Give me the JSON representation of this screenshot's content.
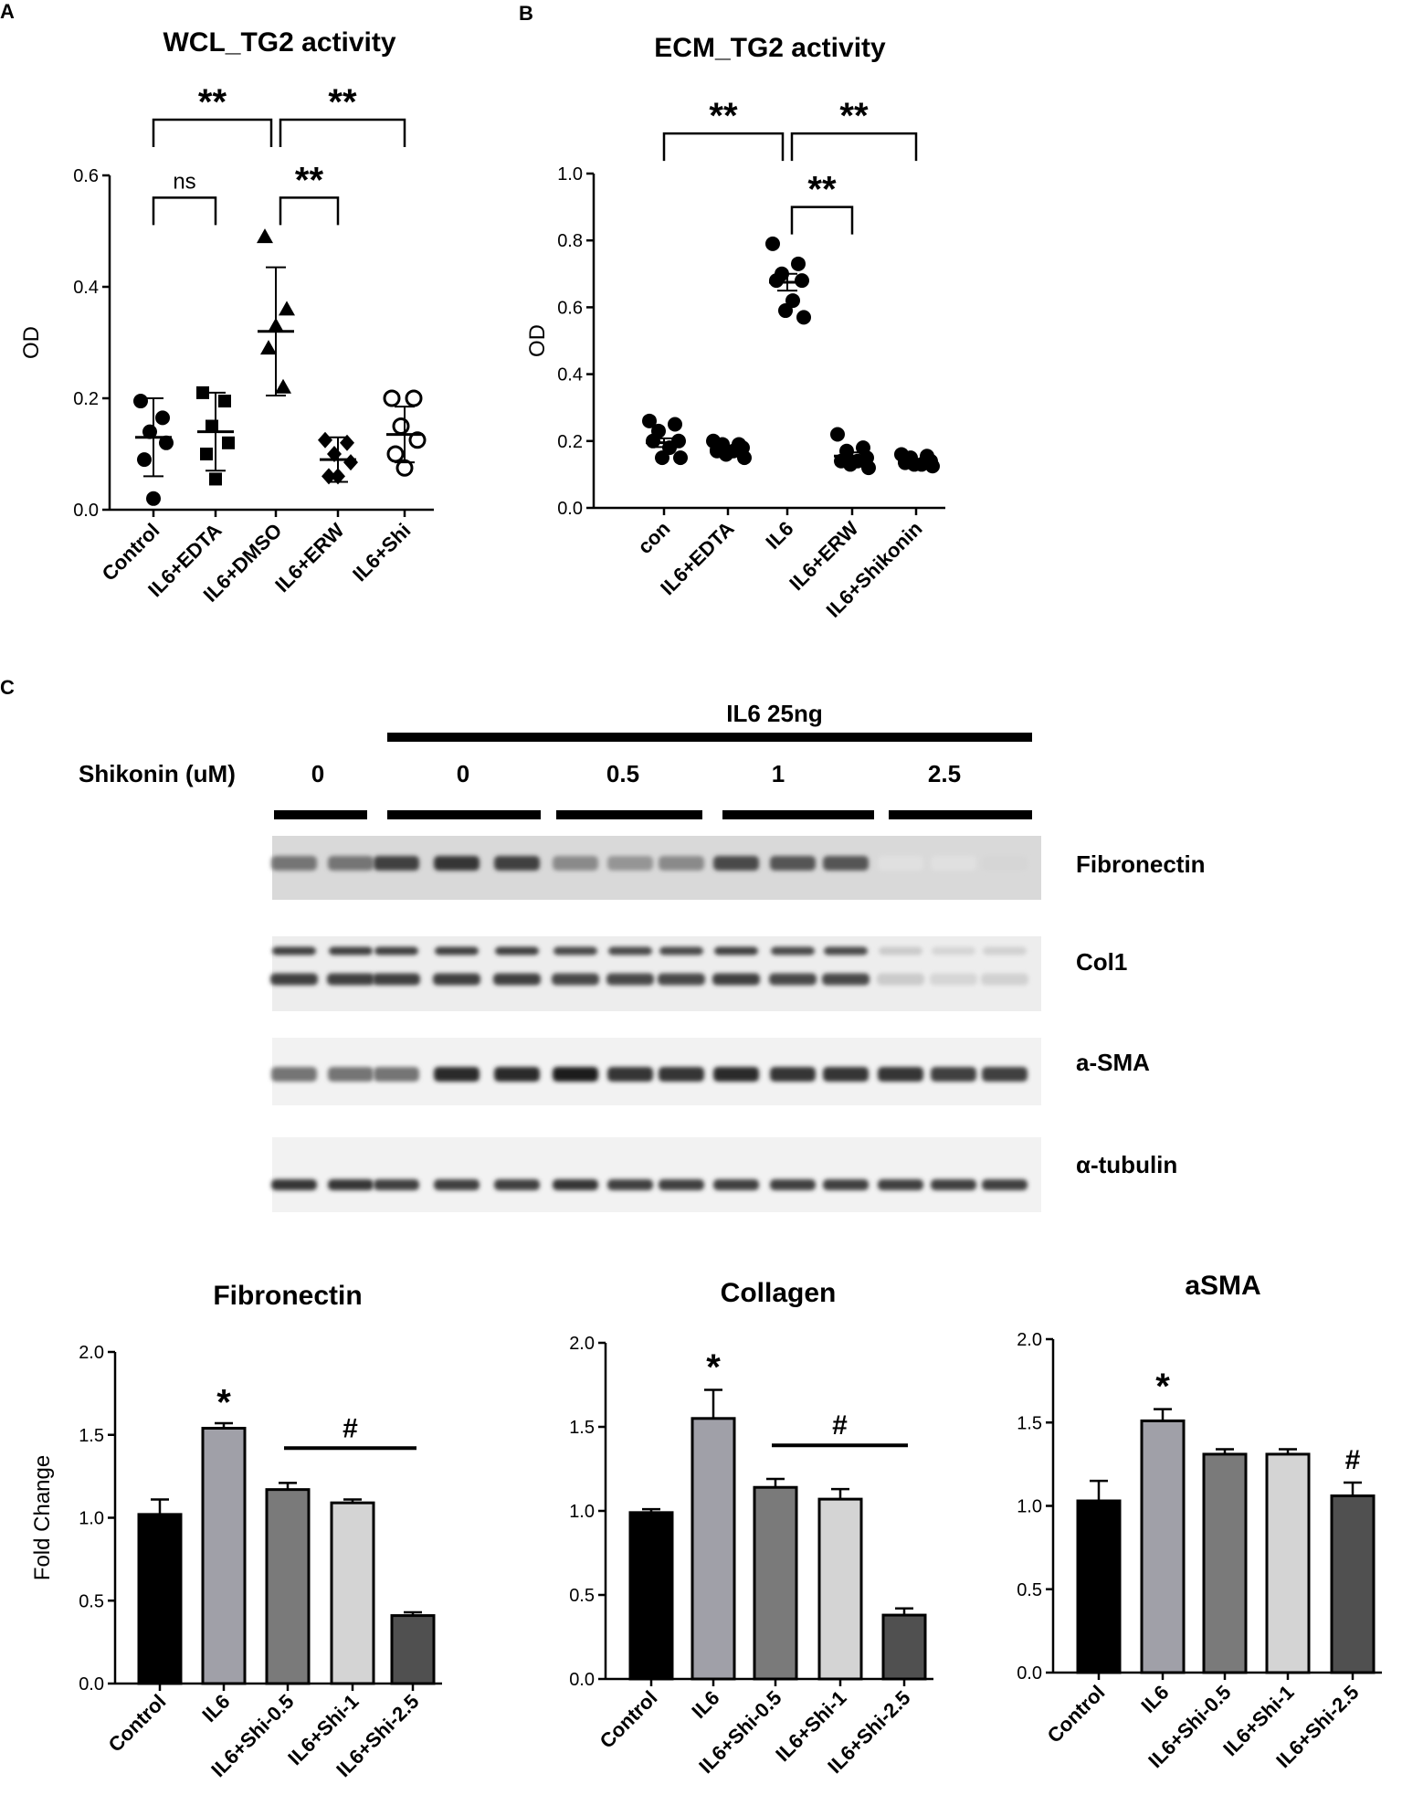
{
  "panels": {
    "A": "A",
    "B": "B",
    "C": "C"
  },
  "chart_data": [
    {
      "id": "A",
      "type": "scatter",
      "title": "WCL_TG2 activity",
      "ylabel": "OD",
      "ylim": [
        0,
        0.6
      ],
      "yticks": [
        "0.0",
        "0.2",
        "0.4",
        "0.6"
      ],
      "yticks_values": [
        0,
        0.2,
        0.4,
        0.6
      ],
      "categories": [
        "Control",
        "IL6+EDTA",
        "IL6+DMSO",
        "IL6+ERW",
        "IL6+Shi"
      ],
      "markers": [
        "circle",
        "square",
        "triangle",
        "diamond",
        "open-circle"
      ],
      "points": [
        [
          0.195,
          0.165,
          0.14,
          0.12,
          0.09,
          0.02
        ],
        [
          0.21,
          0.195,
          0.15,
          0.12,
          0.1,
          0.055
        ],
        [
          0.49,
          0.36,
          0.33,
          0.29,
          0.22
        ],
        [
          0.125,
          0.12,
          0.1,
          0.085,
          0.06,
          0.06
        ],
        [
          0.2,
          0.2,
          0.15,
          0.125,
          0.1,
          0.075
        ]
      ],
      "mean": [
        0.13,
        0.14,
        0.32,
        0.09,
        0.135
      ],
      "sd": [
        0.07,
        0.07,
        0.115,
        0.04,
        0.05
      ],
      "comparisons": [
        {
          "from": 0,
          "to": 2,
          "label": "**",
          "y": 0.7
        },
        {
          "from": 2,
          "to": 4,
          "label": "**",
          "y": 0.7
        },
        {
          "from": 0,
          "to": 1,
          "label": "ns",
          "y": 0.56
        },
        {
          "from": 2,
          "to": 3,
          "label": "**",
          "y": 0.56
        }
      ]
    },
    {
      "id": "B",
      "type": "scatter",
      "title": "ECM_TG2 activity",
      "ylabel": "OD",
      "ylim": [
        0,
        1.0
      ],
      "yticks": [
        "0.0",
        "0.2",
        "0.4",
        "0.6",
        "0.8",
        "1.0"
      ],
      "yticks_values": [
        0,
        0.2,
        0.4,
        0.6,
        0.8,
        1.0
      ],
      "categories": [
        "con",
        "IL6+EDTA",
        "IL6",
        "IL6+ERW",
        "IL6+Shikonin"
      ],
      "markers": [
        "circle",
        "circle",
        "circle",
        "circle",
        "circle"
      ],
      "points": [
        [
          0.26,
          0.25,
          0.23,
          0.2,
          0.2,
          0.18,
          0.15,
          0.15
        ],
        [
          0.2,
          0.19,
          0.19,
          0.18,
          0.17,
          0.17,
          0.16,
          0.15
        ],
        [
          0.79,
          0.73,
          0.7,
          0.68,
          0.68,
          0.62,
          0.59,
          0.57
        ],
        [
          0.22,
          0.18,
          0.17,
          0.15,
          0.14,
          0.14,
          0.13,
          0.12
        ],
        [
          0.16,
          0.155,
          0.15,
          0.14,
          0.135,
          0.13,
          0.13,
          0.125
        ]
      ],
      "mean": [
        0.195,
        0.175,
        0.675,
        0.155,
        0.14
      ],
      "sem": [
        0.013,
        0.006,
        0.025,
        0.011,
        0.005
      ],
      "comparisons": [
        {
          "from": 0,
          "to": 2,
          "label": "**",
          "y": 1.12
        },
        {
          "from": 2,
          "to": 4,
          "label": "**",
          "y": 1.12
        },
        {
          "from": 2,
          "to": 3,
          "label": "**",
          "y": 0.9
        }
      ]
    },
    {
      "id": "C1",
      "type": "bar",
      "title": "Fibronectin",
      "ylabel": "Fold Change",
      "ylim": [
        0,
        2.0
      ],
      "yticks": [
        "0.0",
        "0.5",
        "1.0",
        "1.5",
        "2.0"
      ],
      "yticks_values": [
        0,
        0.5,
        1.0,
        1.5,
        2.0
      ],
      "categories": [
        "Control",
        "IL6",
        "IL6+Shi-0.5",
        "IL6+Shi-1",
        "IL6+Shi-2.5"
      ],
      "values": [
        1.02,
        1.54,
        1.17,
        1.09,
        0.41
      ],
      "errors": [
        0.09,
        0.03,
        0.04,
        0.02,
        0.02
      ],
      "colors": [
        "#000000",
        "#a0a0a8",
        "#7a7a7a",
        "#d4d4d4",
        "#505050"
      ],
      "marks": [
        {
          "cat": 1,
          "label": "*",
          "y": 1.7
        }
      ],
      "hash": {
        "from": 2,
        "to": 4,
        "label": "#",
        "y": 1.42
      }
    },
    {
      "id": "C2",
      "type": "bar",
      "title": "Collagen",
      "ylabel": "",
      "ylim": [
        0,
        2.0
      ],
      "yticks": [
        "0.0",
        "0.5",
        "1.0",
        "1.5",
        "2.0"
      ],
      "yticks_values": [
        0,
        0.5,
        1.0,
        1.5,
        2.0
      ],
      "categories": [
        "Control",
        "IL6",
        "IL6+Shi-0.5",
        "IL6+Shi-1",
        "IL6+Shi-2.5"
      ],
      "values": [
        0.99,
        1.55,
        1.14,
        1.07,
        0.38
      ],
      "errors": [
        0.02,
        0.17,
        0.05,
        0.06,
        0.04
      ],
      "colors": [
        "#000000",
        "#a0a0a8",
        "#7a7a7a",
        "#d4d4d4",
        "#505050"
      ],
      "marks": [
        {
          "cat": 1,
          "label": "*",
          "y": 1.86
        }
      ],
      "hash": {
        "from": 2,
        "to": 4,
        "label": "#",
        "y": 1.39
      }
    },
    {
      "id": "C3",
      "type": "bar",
      "title": "aSMA",
      "ylabel": "",
      "ylim": [
        0,
        2.0
      ],
      "yticks": [
        "0.0",
        "0.5",
        "1.0",
        "1.5",
        "2.0"
      ],
      "yticks_values": [
        0,
        0.5,
        1.0,
        1.5,
        2.0
      ],
      "categories": [
        "Control",
        "IL6",
        "IL6+Shi-0.5",
        "IL6+Shi-1",
        "IL6+Shi-2.5"
      ],
      "values": [
        1.03,
        1.51,
        1.31,
        1.31,
        1.06
      ],
      "errors": [
        0.12,
        0.07,
        0.03,
        0.03,
        0.08
      ],
      "colors": [
        "#000000",
        "#a0a0a8",
        "#7a7a7a",
        "#d4d4d4",
        "#505050"
      ],
      "marks": [
        {
          "cat": 1,
          "label": "*",
          "y": 1.72
        },
        {
          "cat": 4,
          "label": "#",
          "y": 1.3
        }
      ]
    }
  ],
  "blot": {
    "treatment": "IL6 25ng",
    "dose_label": "Shikonin (uM)",
    "doses": [
      "0",
      "0",
      "0.5",
      "1",
      "2.5"
    ],
    "rows": [
      {
        "label": "Fibronectin",
        "intensity": [
          0.55,
          0.55,
          0.8,
          0.85,
          0.8,
          0.45,
          0.4,
          0.45,
          0.75,
          0.7,
          0.7,
          0.05,
          0.05,
          0.1
        ]
      },
      {
        "label": "Col1",
        "intensity": [
          0.8,
          0.8,
          0.8,
          0.8,
          0.8,
          0.75,
          0.75,
          0.75,
          0.8,
          0.75,
          0.75,
          0.15,
          0.1,
          0.12
        ]
      },
      {
        "label": "a-SMA",
        "intensity": [
          0.55,
          0.55,
          0.55,
          0.9,
          0.9,
          0.95,
          0.85,
          0.85,
          0.9,
          0.85,
          0.85,
          0.85,
          0.8,
          0.8
        ]
      },
      {
        "label": "α-tubulin",
        "intensity": [
          0.85,
          0.85,
          0.8,
          0.8,
          0.8,
          0.85,
          0.8,
          0.8,
          0.8,
          0.8,
          0.8,
          0.8,
          0.8,
          0.8
        ]
      }
    ]
  }
}
